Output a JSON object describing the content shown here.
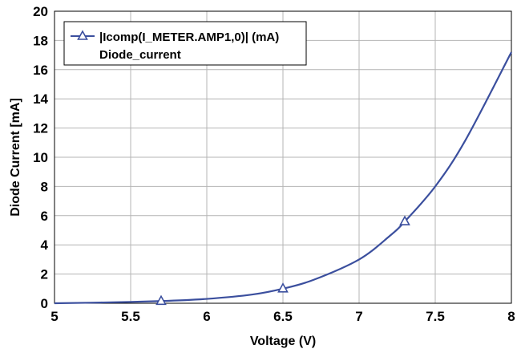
{
  "chart_data": {
    "type": "line",
    "xlabel": "Voltage (V)",
    "ylabel": "Diode Current [mA]",
    "xlim": [
      5,
      8
    ],
    "ylim": [
      0,
      20
    ],
    "xticks": [
      "5",
      "5.5",
      "6",
      "6.5",
      "7",
      "7.5",
      "8"
    ],
    "yticks": [
      "0",
      "2",
      "4",
      "6",
      "8",
      "10",
      "12",
      "14",
      "16",
      "18",
      "20"
    ],
    "grid": true,
    "legend_position": "top-left",
    "series": [
      {
        "name": "|Icomp(I_METER.AMP1,0)| (mA)",
        "subname": "Diode_current",
        "color": "#3b4f9e",
        "marker": "triangle",
        "x": [
          5.0,
          5.3,
          5.7,
          6.0,
          6.3,
          6.5,
          6.7,
          7.0,
          7.2,
          7.3,
          7.5,
          7.7,
          8.0
        ],
        "y": [
          0.0,
          0.05,
          0.15,
          0.3,
          0.6,
          1.0,
          1.6,
          3.0,
          4.6,
          5.6,
          8.0,
          11.2,
          17.2
        ],
        "markers_x": [
          5.7,
          6.5,
          7.3
        ],
        "markers_y": [
          0.15,
          1.0,
          5.6
        ]
      }
    ]
  }
}
